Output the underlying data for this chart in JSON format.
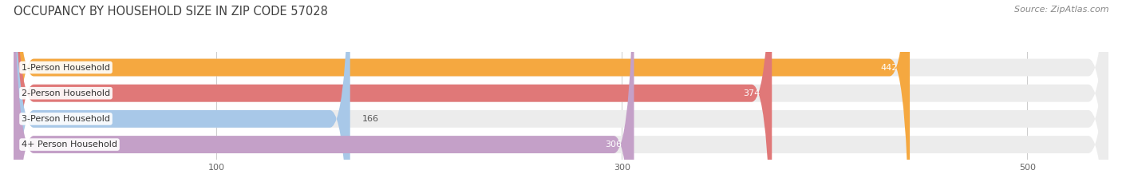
{
  "title": "OCCUPANCY BY HOUSEHOLD SIZE IN ZIP CODE 57028",
  "source": "Source: ZipAtlas.com",
  "categories": [
    "1-Person Household",
    "2-Person Household",
    "3-Person Household",
    "4+ Person Household"
  ],
  "values": [
    442,
    374,
    166,
    306
  ],
  "bar_colors": [
    "#F5A840",
    "#E07878",
    "#A8C8E8",
    "#C4A0C8"
  ],
  "xlim": [
    0,
    540
  ],
  "xticks": [
    100,
    300,
    500
  ],
  "background_color": "#ffffff",
  "bar_bg_color": "#ececec",
  "title_fontsize": 10.5,
  "label_fontsize": 8,
  "value_fontsize": 8,
  "source_fontsize": 8,
  "bar_height": 0.68,
  "figsize": [
    14.06,
    2.33
  ],
  "dpi": 100
}
